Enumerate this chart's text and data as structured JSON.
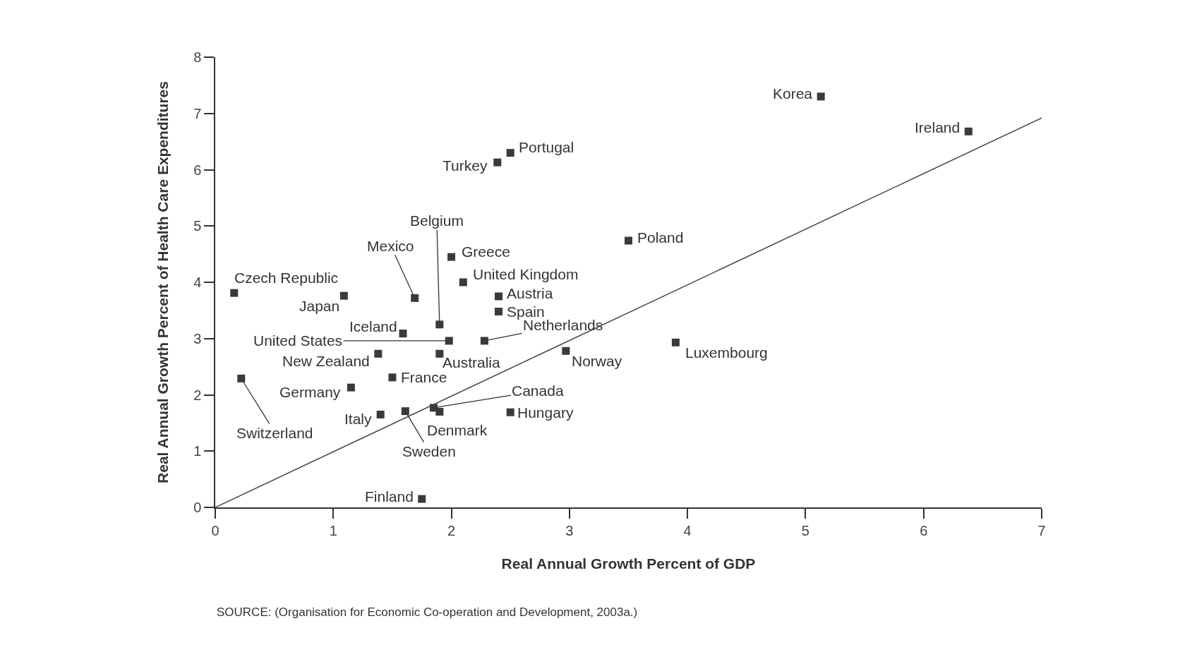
{
  "chart_data": {
    "type": "scatter",
    "xlabel": "Real Annual Growth Percent of GDP",
    "ylabel": "Real Annual Growth Percent of Health Care Expenditures",
    "xlim": [
      0,
      7
    ],
    "xticks": [
      0,
      1,
      2,
      3,
      4,
      5,
      6,
      7
    ],
    "ylim": [
      0,
      8
    ],
    "yticks": [
      0,
      1,
      2,
      3,
      4,
      5,
      6,
      7,
      8
    ],
    "series": [
      {
        "marker": "square",
        "color": "#3a3a3a",
        "x": [
          5.13,
          6.38,
          2.5,
          2.39,
          3.5,
          2.0,
          2.1,
          2.4,
          2.4,
          0.16,
          1.09,
          1.69,
          1.9,
          1.59,
          1.98,
          2.28,
          1.38,
          1.9,
          2.97,
          3.9,
          1.5,
          0.22,
          1.15,
          1.85,
          1.9,
          2.5,
          1.61,
          1.4,
          1.75
        ],
        "values": [
          7.3,
          6.68,
          6.3,
          6.13,
          4.74,
          4.45,
          4.0,
          3.75,
          3.48,
          3.81,
          3.76,
          3.72,
          3.25,
          3.09,
          2.96,
          2.96,
          2.73,
          2.73,
          2.78,
          2.93,
          2.31,
          2.29,
          2.13,
          1.77,
          1.7,
          1.69,
          1.71,
          1.65,
          0.15
        ]
      },
      {
        "type": "line",
        "color": "#444444",
        "x": [
          0,
          7
        ],
        "values": [
          0,
          6.92
        ]
      }
    ],
    "annotations": [
      {
        "text": "Korea",
        "x": 5.13,
        "y": 7.3
      },
      {
        "text": "Ireland",
        "x": 6.38,
        "y": 6.68
      },
      {
        "text": "Portugal",
        "x": 2.5,
        "y": 6.3
      },
      {
        "text": "Turkey",
        "x": 2.39,
        "y": 6.13
      },
      {
        "text": "Poland",
        "x": 3.5,
        "y": 4.74
      },
      {
        "text": "Greece",
        "x": 2.0,
        "y": 4.45
      },
      {
        "text": "United Kingdom",
        "x": 2.1,
        "y": 4.0
      },
      {
        "text": "Austria",
        "x": 2.4,
        "y": 3.75
      },
      {
        "text": "Spain",
        "x": 2.4,
        "y": 3.48
      },
      {
        "text": "Czech Republic",
        "x": 0.16,
        "y": 3.81
      },
      {
        "text": "Japan",
        "x": 1.09,
        "y": 3.76
      },
      {
        "text": "Mexico",
        "x": 1.69,
        "y": 3.72
      },
      {
        "text": "Belgium",
        "x": 1.9,
        "y": 3.25
      },
      {
        "text": "Iceland",
        "x": 1.59,
        "y": 3.09
      },
      {
        "text": "United States",
        "x": 1.98,
        "y": 2.96
      },
      {
        "text": "Netherlands",
        "x": 2.28,
        "y": 2.96
      },
      {
        "text": "New Zealand",
        "x": 1.38,
        "y": 2.73
      },
      {
        "text": "Australia",
        "x": 1.9,
        "y": 2.73
      },
      {
        "text": "Norway",
        "x": 2.97,
        "y": 2.78
      },
      {
        "text": "Luxembourg",
        "x": 3.9,
        "y": 2.93
      },
      {
        "text": "France",
        "x": 1.5,
        "y": 2.31
      },
      {
        "text": "Switzerland",
        "x": 0.22,
        "y": 2.29
      },
      {
        "text": "Germany",
        "x": 1.15,
        "y": 2.13
      },
      {
        "text": "Canada",
        "x": 1.85,
        "y": 1.77
      },
      {
        "text": "Denmark",
        "x": 1.9,
        "y": 1.7
      },
      {
        "text": "Hungary",
        "x": 2.5,
        "y": 1.69
      },
      {
        "text": "Sweden",
        "x": 1.61,
        "y": 1.71
      },
      {
        "text": "Italy",
        "x": 1.4,
        "y": 1.65
      },
      {
        "text": "Finland",
        "x": 1.75,
        "y": 0.15
      },
      "SOURCE: (Organisation for Economic Co-operation and Development, 2003a.)"
    ]
  }
}
